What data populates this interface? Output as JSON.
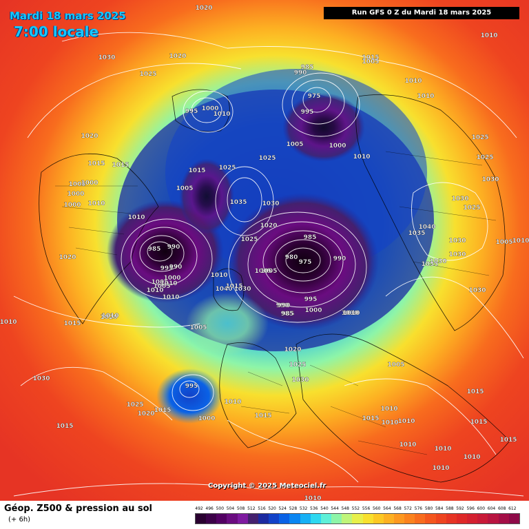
{
  "header": {
    "date_title": "Mardi 18 mars 2025",
    "time_title": "7:00 locale",
    "run_info": "Run GFS 0 Z du Mardi 18 mars 2025"
  },
  "copyright": "Copyright © 2025 Meteociel.fr",
  "footer": {
    "product_title": "Géop. Z500 & pression au sol",
    "lead_time": "(+ 6h)"
  },
  "legend": {
    "levels": [
      "492",
      "496",
      "500",
      "504",
      "508",
      "512",
      "516",
      "520",
      "524",
      "528",
      "532",
      "536",
      "540",
      "544",
      "548",
      "552",
      "556",
      "560",
      "564",
      "568",
      "572",
      "576",
      "580",
      "584",
      "588",
      "592",
      "596",
      "600",
      "604",
      "608",
      "612"
    ],
    "colors": [
      "#2a0030",
      "#3c0048",
      "#520062",
      "#6a0c80",
      "#7e1aa0",
      "#44206e",
      "#1c2aa0",
      "#1242c8",
      "#0a62e6",
      "#0a86f2",
      "#16b0f5",
      "#2ed8f0",
      "#5ef0d8",
      "#8ef5a8",
      "#c0f57a",
      "#e8f04a",
      "#f8e02e",
      "#fcc824",
      "#fdb022",
      "#fd9820",
      "#fb821e",
      "#f86c1e",
      "#f4561e",
      "#ee4420",
      "#e63424",
      "#de2828",
      "#d42030",
      "#c81a38",
      "#b81440",
      "#a40e46",
      "#8e0a48"
    ]
  },
  "pressure_labels": [
    {
      "text": "1020"
    },
    {
      "text": "1030"
    },
    {
      "text": "1025"
    },
    {
      "text": "1020"
    },
    {
      "text": "1020"
    },
    {
      "text": "1015"
    },
    {
      "text": "1010"
    },
    {
      "text": "1005"
    },
    {
      "text": "1000"
    },
    {
      "text": "1000"
    },
    {
      "text": "1000"
    },
    {
      "text": "1010"
    },
    {
      "text": "1020"
    },
    {
      "text": "985"
    },
    {
      "text": "990"
    },
    {
      "text": "995"
    },
    {
      "text": "1000"
    },
    {
      "text": "1005"
    },
    {
      "text": "990"
    },
    {
      "text": "1010"
    },
    {
      "text": "1005"
    },
    {
      "text": "1010"
    },
    {
      "text": "1010"
    },
    {
      "text": "1005"
    },
    {
      "text": "995"
    },
    {
      "text": "985"
    },
    {
      "text": "990"
    },
    {
      "text": "1005"
    },
    {
      "text": "1015"
    },
    {
      "text": "1025"
    },
    {
      "text": "1035"
    },
    {
      "text": "1030"
    },
    {
      "text": "1025"
    },
    {
      "text": "1020"
    },
    {
      "text": "1025"
    },
    {
      "text": "1005"
    },
    {
      "text": "1000"
    },
    {
      "text": "990"
    },
    {
      "text": "985"
    },
    {
      "text": "975"
    },
    {
      "text": "995"
    },
    {
      "text": "1015"
    },
    {
      "text": "1010"
    },
    {
      "text": "1010"
    },
    {
      "text": "1010"
    },
    {
      "text": "1025"
    },
    {
      "text": "1025"
    },
    {
      "text": "1030"
    },
    {
      "text": "1030"
    },
    {
      "text": "1025"
    },
    {
      "text": "1040"
    },
    {
      "text": "1035"
    },
    {
      "text": "1030"
    },
    {
      "text": "1030"
    },
    {
      "text": "1035"
    },
    {
      "text": "1030"
    },
    {
      "text": "1005"
    },
    {
      "text": "1010"
    },
    {
      "text": "1030"
    },
    {
      "text": "1010"
    },
    {
      "text": "985"
    },
    {
      "text": "980"
    },
    {
      "text": "975"
    },
    {
      "text": "990"
    },
    {
      "text": "1005"
    },
    {
      "text": "1040"
    },
    {
      "text": "1030"
    },
    {
      "text": "990"
    },
    {
      "text": "995"
    },
    {
      "text": "985"
    },
    {
      "text": "1000"
    },
    {
      "text": "1010"
    },
    {
      "text": "1005"
    },
    {
      "text": "1020"
    },
    {
      "text": "1025"
    },
    {
      "text": "1030"
    },
    {
      "text": "1005"
    },
    {
      "text": "995"
    },
    {
      "text": "1000"
    },
    {
      "text": "1010"
    },
    {
      "text": "1000"
    },
    {
      "text": "1015"
    },
    {
      "text": "1010"
    },
    {
      "text": "1010"
    },
    {
      "text": "1025"
    },
    {
      "text": "1020"
    },
    {
      "text": "1015"
    },
    {
      "text": "1015"
    },
    {
      "text": "1010"
    },
    {
      "text": "1010"
    },
    {
      "text": "1015"
    },
    {
      "text": "1015"
    },
    {
      "text": "1010"
    },
    {
      "text": "1010"
    },
    {
      "text": "1015"
    },
    {
      "text": "1015"
    },
    {
      "text": "1010"
    },
    {
      "text": "1010"
    },
    {
      "text": "1005"
    },
    {
      "text": "1010"
    },
    {
      "text": "1015"
    },
    {
      "text": "1005"
    },
    {
      "text": "1010"
    },
    {
      "text": "1010"
    },
    {
      "text": "1030"
    },
    {
      "text": "1020"
    },
    {
      "text": "1015"
    },
    {
      "text": "1010"
    },
    {
      "text": "1010"
    },
    {
      "text": "1015"
    }
  ]
}
